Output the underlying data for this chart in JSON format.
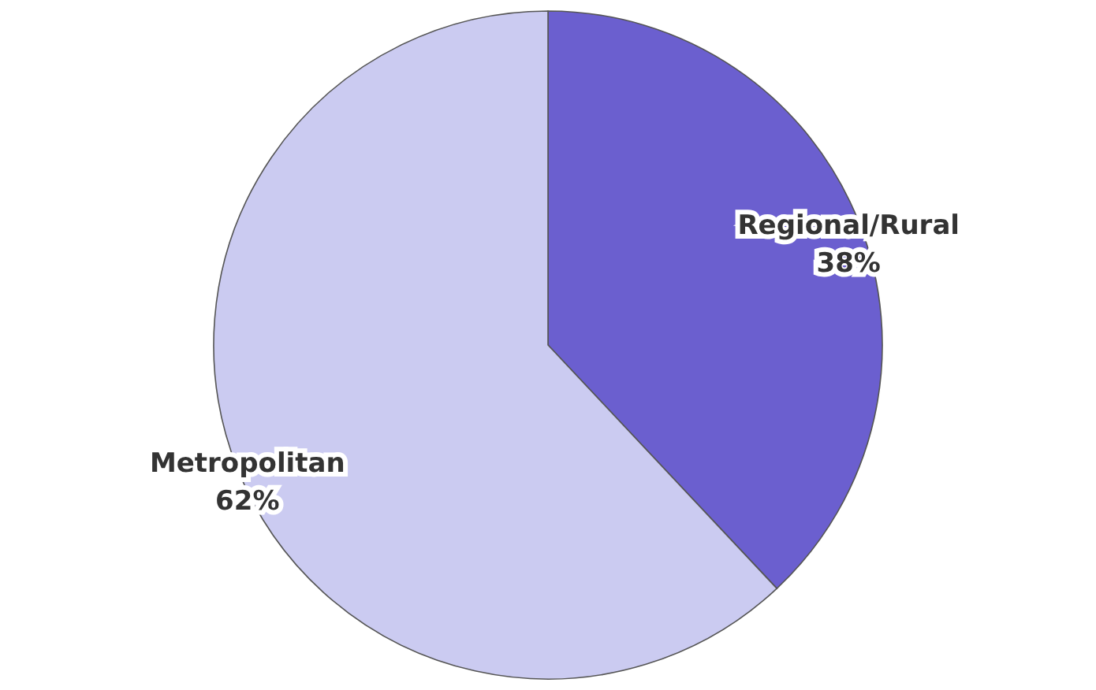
{
  "chart_data": {
    "type": "pie",
    "categories": [
      "Regional/Rural",
      "Metropolitan"
    ],
    "values": [
      38,
      62
    ],
    "colors": [
      "#6b5fcf",
      "#cbcbf1"
    ],
    "value_labels": [
      "38%",
      "62%"
    ],
    "legend": false
  }
}
